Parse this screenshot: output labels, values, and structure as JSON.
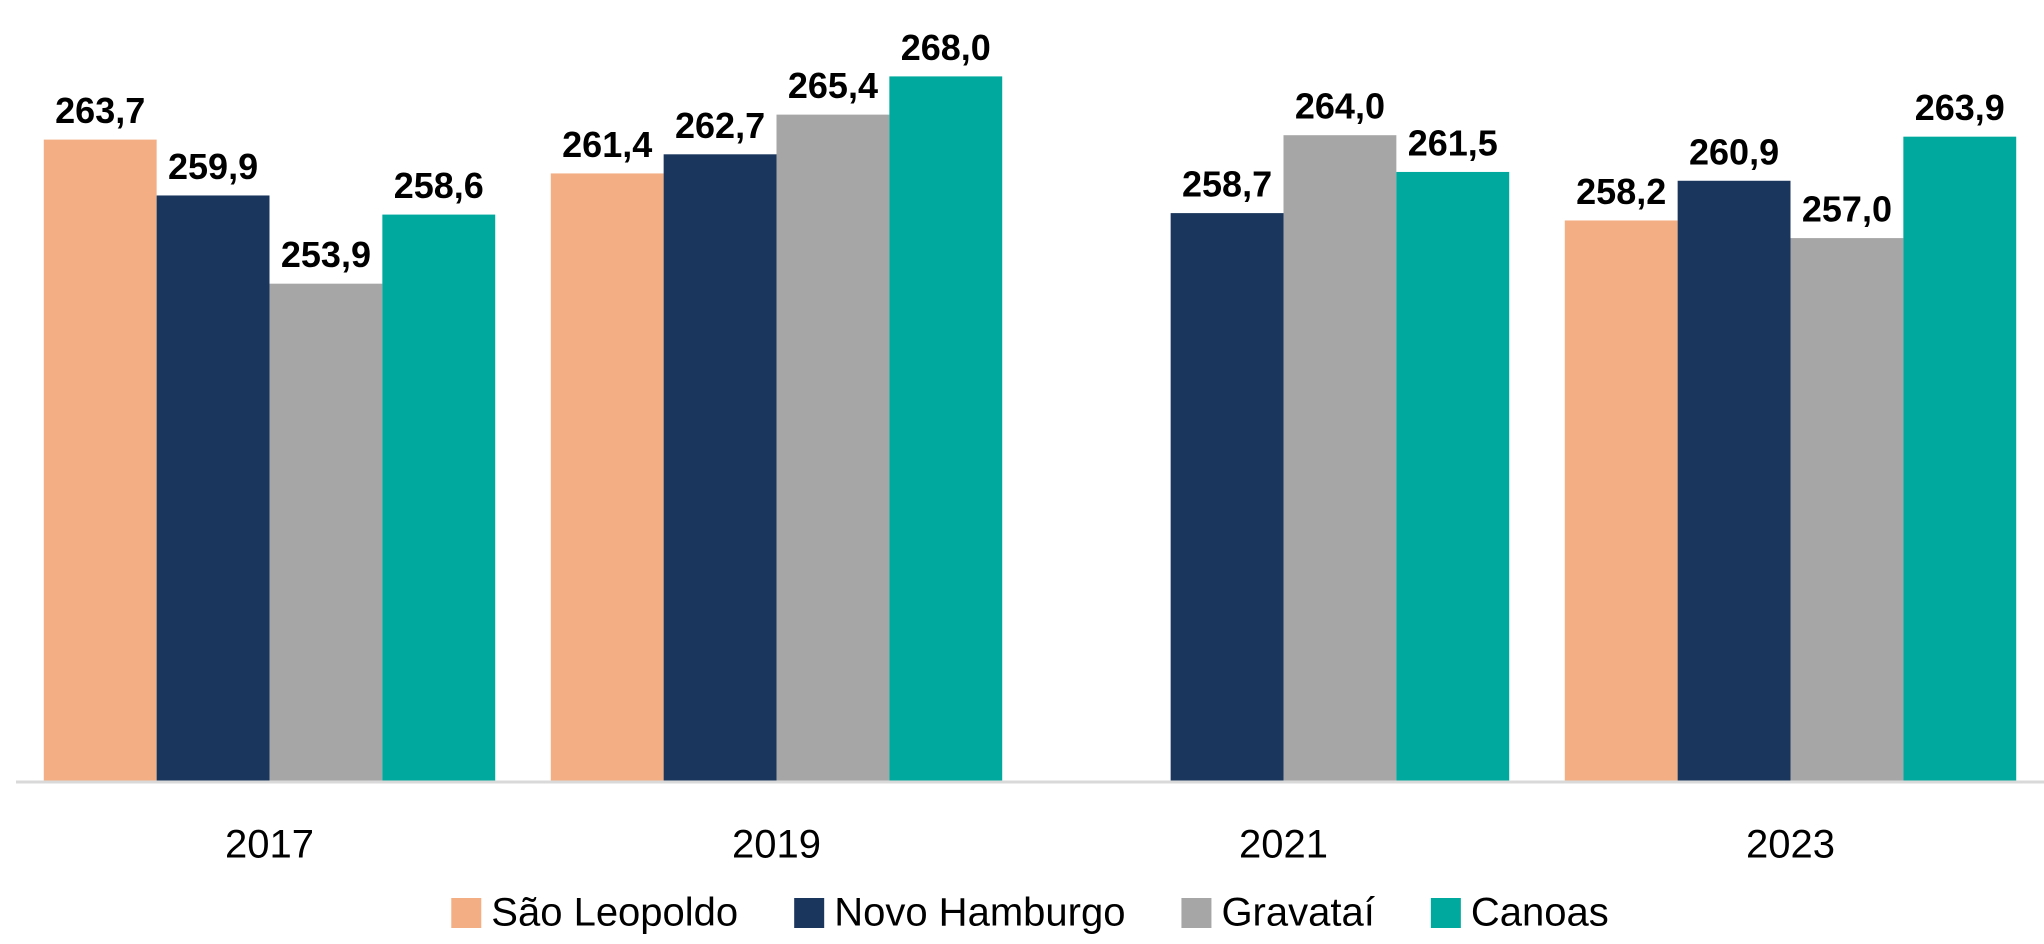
{
  "chart_data": {
    "type": "bar",
    "categories": [
      "2017",
      "2019",
      "2021",
      "2023"
    ],
    "series": [
      {
        "name": "São Leopoldo",
        "color": "#f4ae84",
        "values": [
          263.7,
          261.4,
          null,
          258.2
        ],
        "value_labels": [
          "263,7",
          "261,4",
          null,
          "258,2"
        ]
      },
      {
        "name": "Novo Hamburgo",
        "color": "#1a365d",
        "values": [
          259.9,
          262.7,
          258.7,
          260.9
        ],
        "value_labels": [
          "259,9",
          "262,7",
          "258,7",
          "260,9"
        ]
      },
      {
        "name": "Gravataí",
        "color": "#a6a6a6",
        "values": [
          253.9,
          265.4,
          264.0,
          257.0
        ],
        "value_labels": [
          "253,9",
          "265,4",
          "264,0",
          "257,0"
        ]
      },
      {
        "name": "Canoas",
        "color": "#00a99d",
        "values": [
          258.6,
          268.0,
          261.5,
          263.9
        ],
        "value_labels": [
          "258,6",
          "268,0",
          "261,5",
          "263,9"
        ]
      }
    ],
    "ylim": [
      220,
      270
    ],
    "legend": "bottom"
  }
}
